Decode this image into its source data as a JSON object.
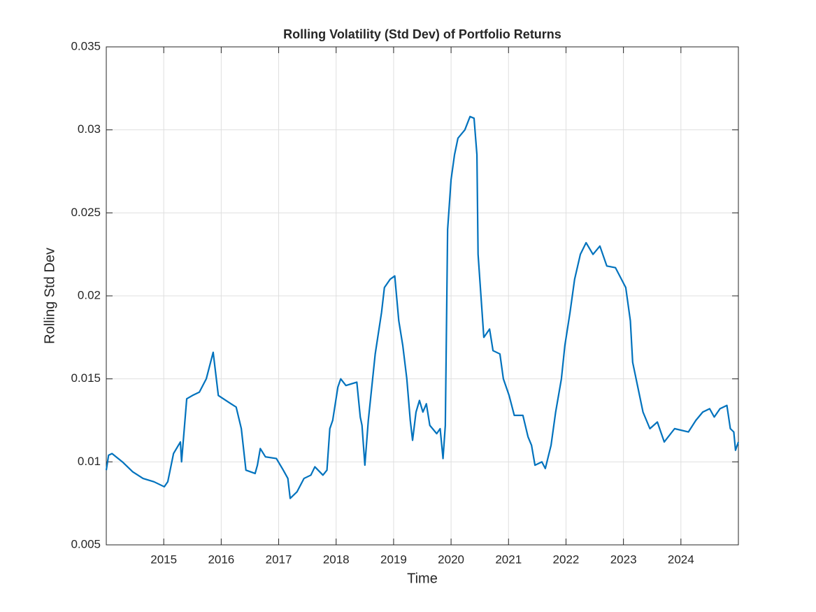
{
  "chart_data": {
    "type": "line",
    "title": "Rolling Volatility (Std Dev) of Portfolio Returns",
    "x_label": "Time",
    "y_label": "Rolling Std Dev",
    "x": [
      2014.0,
      2014.04,
      2014.1,
      2014.28,
      2014.46,
      2014.64,
      2014.83,
      2015.01,
      2015.07,
      2015.17,
      2015.29,
      2015.31,
      2015.4,
      2015.5,
      2015.62,
      2015.74,
      2015.86,
      2015.95,
      2016.17,
      2016.26,
      2016.35,
      2016.43,
      2016.59,
      2016.63,
      2016.68,
      2016.77,
      2016.96,
      2017.08,
      2017.16,
      2017.2,
      2017.32,
      2017.44,
      2017.56,
      2017.63,
      2017.77,
      2017.84,
      2017.89,
      2017.94,
      2018.03,
      2018.08,
      2018.17,
      2018.36,
      2018.42,
      2018.45,
      2018.5,
      2018.56,
      2018.68,
      2018.79,
      2018.84,
      2018.94,
      2019.02,
      2019.09,
      2019.16,
      2019.23,
      2019.29,
      2019.33,
      2019.39,
      2019.45,
      2019.51,
      2019.57,
      2019.63,
      2019.75,
      2019.81,
      2019.86,
      2019.9,
      2019.94,
      2020.0,
      2020.06,
      2020.12,
      2020.24,
      2020.33,
      2020.4,
      2020.45,
      2020.47,
      2020.52,
      2020.57,
      2020.67,
      2020.73,
      2020.85,
      2020.91,
      2021.01,
      2021.1,
      2021.25,
      2021.34,
      2021.4,
      2021.46,
      2021.58,
      2021.64,
      2021.74,
      2021.82,
      2021.92,
      2021.98,
      2022.07,
      2022.15,
      2022.25,
      2022.35,
      2022.47,
      2022.59,
      2022.71,
      2022.86,
      2023.04,
      2023.12,
      2023.16,
      2023.25,
      2023.34,
      2023.46,
      2023.59,
      2023.71,
      2023.89,
      2024.13,
      2024.26,
      2024.38,
      2024.5,
      2024.58,
      2024.68,
      2024.8,
      2024.86,
      2024.92,
      2024.95,
      2025.0
    ],
    "series": [
      {
        "color": "#0072bd",
        "values": [
          0.0095,
          0.0104,
          0.0105,
          0.01,
          0.0094,
          0.009,
          0.0088,
          0.0085,
          0.0088,
          0.0105,
          0.0112,
          0.01,
          0.0138,
          0.014,
          0.0142,
          0.015,
          0.0166,
          0.014,
          0.0135,
          0.0133,
          0.012,
          0.0095,
          0.0093,
          0.0098,
          0.0108,
          0.0103,
          0.0102,
          0.0095,
          0.009,
          0.0078,
          0.0082,
          0.009,
          0.0092,
          0.0097,
          0.0092,
          0.0095,
          0.012,
          0.0125,
          0.0145,
          0.015,
          0.0146,
          0.0148,
          0.0127,
          0.0122,
          0.0098,
          0.0125,
          0.0165,
          0.019,
          0.0205,
          0.021,
          0.0212,
          0.0185,
          0.017,
          0.015,
          0.0125,
          0.0113,
          0.013,
          0.0137,
          0.013,
          0.0135,
          0.0122,
          0.0117,
          0.012,
          0.0102,
          0.0122,
          0.024,
          0.027,
          0.0285,
          0.0295,
          0.03,
          0.0308,
          0.0307,
          0.0285,
          0.0225,
          0.02,
          0.0175,
          0.018,
          0.0167,
          0.0165,
          0.015,
          0.014,
          0.0128,
          0.0128,
          0.0115,
          0.011,
          0.0098,
          0.01,
          0.0096,
          0.011,
          0.013,
          0.015,
          0.017,
          0.019,
          0.021,
          0.0225,
          0.0232,
          0.0225,
          0.023,
          0.0218,
          0.0217,
          0.0205,
          0.0185,
          0.016,
          0.0145,
          0.013,
          0.012,
          0.0124,
          0.0112,
          0.012,
          0.0118,
          0.0125,
          0.013,
          0.0132,
          0.0127,
          0.0132,
          0.0134,
          0.012,
          0.0118,
          0.0107,
          0.0112
        ]
      }
    ],
    "xlim": [
      2014,
      2025
    ],
    "xticks": [
      2015,
      2016,
      2017,
      2018,
      2019,
      2020,
      2021,
      2022,
      2023,
      2024
    ],
    "ylim": [
      0.005,
      0.035
    ],
    "yticks": [
      0.005,
      0.01,
      0.015,
      0.02,
      0.025,
      0.03,
      0.035
    ],
    "grid": true
  }
}
